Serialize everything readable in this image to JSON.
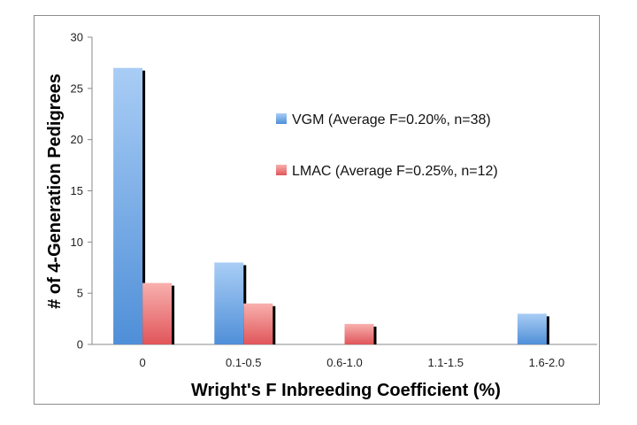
{
  "chart_data": {
    "type": "bar",
    "title": "",
    "xlabel": "Wright's F Inbreeding Coefficient (%)",
    "ylabel": "# of 4-Generation Pedigrees",
    "categories": [
      "0",
      "0.1-0.5",
      "0.6-1.0",
      "1.1-1.5",
      "1.6-2.0"
    ],
    "ylim": [
      0,
      30
    ],
    "yticks": [
      0,
      5,
      10,
      15,
      20,
      25,
      30
    ],
    "grid": false,
    "legend_position": "right",
    "series": [
      {
        "name": "VGM (Average F=0.20%, n=38)",
        "values": [
          27,
          8,
          0,
          0,
          3
        ],
        "color": "#5b9bd5"
      },
      {
        "name": "LMAC (Average F=0.25%, n=12)",
        "values": [
          6,
          4,
          2,
          0,
          0
        ],
        "color": "#e8696b"
      }
    ]
  }
}
